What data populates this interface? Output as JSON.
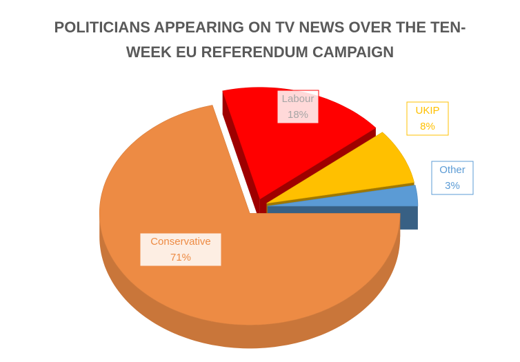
{
  "chart_data": {
    "type": "pie",
    "title": "POLITICIANS APPEARING ON TV NEWS OVER THE TEN-WEEK EU REFERENDUM CAMPAIGN",
    "categories": [
      "Labour",
      "UKIP",
      "Other",
      "Conservative"
    ],
    "values": [
      18,
      8,
      3,
      71
    ],
    "value_labels": [
      "18%",
      "8%",
      "3%",
      "71%"
    ],
    "colors": [
      "#ff0000",
      "#ffc000",
      "#5b9bd5",
      "#ed8b44"
    ],
    "label_colors": [
      "#a6a6a6",
      "#ffc000",
      "#5b9bd5",
      "#ed8b44"
    ]
  }
}
